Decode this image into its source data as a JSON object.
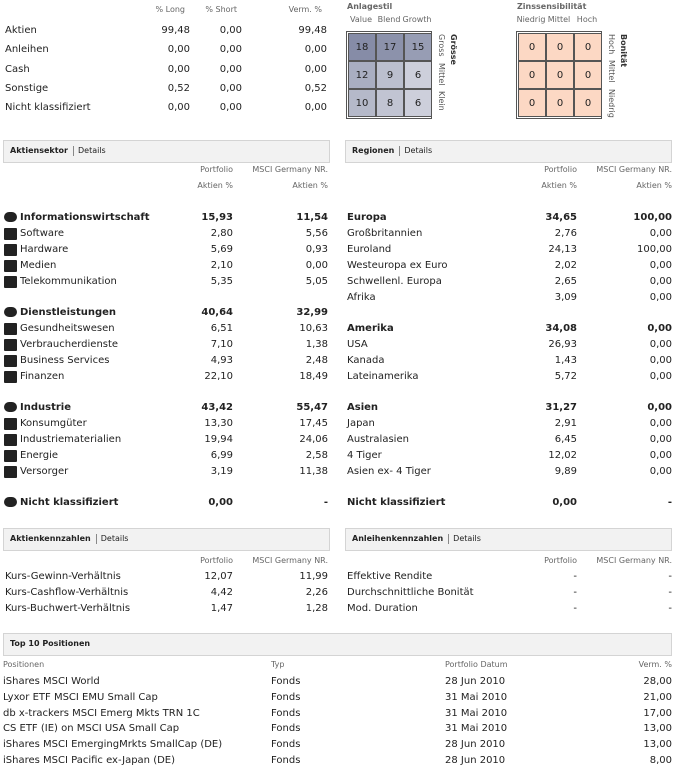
{
  "allocation": {
    "headers": [
      "% Long",
      "% Short",
      "Verm. %"
    ],
    "rows": [
      [
        "Aktien",
        "99,48",
        "0,00",
        "99,48"
      ],
      [
        "Anleihen",
        "0,00",
        "0,00",
        "0,00"
      ],
      [
        "Cash",
        "0,00",
        "0,00",
        "0,00"
      ],
      [
        "Sonstige",
        "0,52",
        "0,00",
        "0,52"
      ],
      [
        "Nicht klassifiziert",
        "0,00",
        "0,00",
        "0,00"
      ]
    ]
  },
  "style_box": {
    "title": "Anlagestil",
    "column_labels": [
      "Value",
      "Blend",
      "Growth"
    ],
    "side_title": "Grösse",
    "side_labels": [
      "Gross",
      "Mittel",
      "Klein"
    ],
    "cells": [
      [
        "18",
        "17",
        "15"
      ],
      [
        "12",
        "9",
        "6"
      ],
      [
        "10",
        "8",
        "6"
      ]
    ]
  },
  "rate_box": {
    "title": "Zinssensibilität",
    "column_labels": [
      "Niedrig",
      "Mittel",
      "Hoch"
    ],
    "side_title": "Bonität",
    "side_labels": [
      "Hoch",
      "Mittel",
      "Niedrig"
    ],
    "cells": [
      [
        "0",
        "0",
        "0"
      ],
      [
        "0",
        "0",
        "0"
      ],
      [
        "0",
        "0",
        "0"
      ]
    ]
  },
  "sectors": {
    "title": "Aktiensektor",
    "link": "Details",
    "headers": [
      [
        "Portfolio",
        "Aktien %"
      ],
      [
        "MSCI Germany NR.",
        "Aktien %"
      ]
    ],
    "groups": [
      {
        "name": "Informationswirtschaft",
        "values": [
          "15,93",
          "11,54"
        ],
        "items": [
          [
            "Software",
            "2,80",
            "5,56"
          ],
          [
            "Hardware",
            "5,69",
            "0,93"
          ],
          [
            "Medien",
            "2,10",
            "0,00"
          ],
          [
            "Telekommunikation",
            "5,35",
            "5,05"
          ]
        ]
      },
      {
        "name": "Dienstleistungen",
        "values": [
          "40,64",
          "32,99"
        ],
        "items": [
          [
            "Gesundheitswesen",
            "6,51",
            "10,63"
          ],
          [
            "Verbraucherdienste",
            "7,10",
            "1,38"
          ],
          [
            "Business Services",
            "4,93",
            "2,48"
          ],
          [
            "Finanzen",
            "22,10",
            "18,49"
          ]
        ]
      },
      {
        "name": "Industrie",
        "values": [
          "43,42",
          "55,47"
        ],
        "items": [
          [
            "Konsumgüter",
            "13,30",
            "17,45"
          ],
          [
            "Industriematerialien",
            "19,94",
            "24,06"
          ],
          [
            "Energie",
            "6,99",
            "2,58"
          ],
          [
            "Versorger",
            "3,19",
            "11,38"
          ]
        ]
      },
      {
        "name": "Nicht klassifiziert",
        "values": [
          "0,00",
          "-"
        ],
        "items": []
      }
    ]
  },
  "regions": {
    "title": "Regionen",
    "link": "Details",
    "headers": [
      [
        "Portfolio",
        "Aktien %"
      ],
      [
        "MSCI Germany NR.",
        "Aktien %"
      ]
    ],
    "groups": [
      {
        "name": "Europa",
        "values": [
          "34,65",
          "100,00"
        ],
        "items": [
          [
            "Großbritannien",
            "2,76",
            "0,00"
          ],
          [
            "Euroland",
            "24,13",
            "100,00"
          ],
          [
            "Westeuropa ex Euro",
            "2,02",
            "0,00"
          ],
          [
            "Schwellenl. Europa",
            "2,65",
            "0,00"
          ],
          [
            "Afrika",
            "3,09",
            "0,00"
          ]
        ]
      },
      {
        "name": "Amerika",
        "values": [
          "34,08",
          "0,00"
        ],
        "items": [
          [
            "USA",
            "26,93",
            "0,00"
          ],
          [
            "Kanada",
            "1,43",
            "0,00"
          ],
          [
            "Lateinamerika",
            "5,72",
            "0,00"
          ]
        ]
      },
      {
        "name": "Asien",
        "values": [
          "31,27",
          "0,00"
        ],
        "items": [
          [
            "Japan",
            "2,91",
            "0,00"
          ],
          [
            "Australasien",
            "6,45",
            "0,00"
          ],
          [
            "4 Tiger",
            "12,02",
            "0,00"
          ],
          [
            "Asien ex- 4 Tiger",
            "9,89",
            "0,00"
          ]
        ]
      },
      {
        "name": "Nicht klassifiziert",
        "values": [
          "0,00",
          "-"
        ],
        "items": []
      }
    ]
  },
  "equity_ratios": {
    "title": "Aktienkennzahlen",
    "link": "Details",
    "headers": [
      "Portfolio",
      "MSCI Germany NR."
    ],
    "rows": [
      [
        "Kurs-Gewinn-Verhältnis",
        "12,07",
        "11,99"
      ],
      [
        "Kurs-Cashflow-Verhältnis",
        "4,42",
        "2,26"
      ],
      [
        "Kurs-Buchwert-Verhältnis",
        "1,47",
        "1,28"
      ]
    ]
  },
  "bond_ratios": {
    "title": "Anleihenkennzahlen",
    "link": "Details",
    "headers": [
      "Portfolio",
      "MSCI Germany NR."
    ],
    "rows": [
      [
        "Effektive Rendite",
        "-",
        "-"
      ],
      [
        "Durchschnittliche Bonität",
        "-",
        "-"
      ],
      [
        "Mod. Duration",
        "-",
        "-"
      ]
    ]
  },
  "top10": {
    "title": "Top 10 Positionen",
    "headers": [
      "Positionen",
      "Typ",
      "Portfolio Datum",
      "Verm. %"
    ],
    "rows": [
      [
        "iShares MSCI World",
        "Fonds",
        "28 Jun 2010",
        "28,00"
      ],
      [
        "Lyxor ETF MSCI EMU Small Cap",
        "Fonds",
        "31 Mai 2010",
        "21,00"
      ],
      [
        "db x-trackers MSCI Emerg Mkts TRN 1C",
        "Fonds",
        "31 Mai 2010",
        "17,00"
      ],
      [
        "CS ETF (IE) on MSCI USA Small Cap",
        "Fonds",
        "31 Mai 2010",
        "13,00"
      ],
      [
        "iShares MSCI EmergingMrkts SmallCap (DE)",
        "Fonds",
        "28 Jun 2010",
        "13,00"
      ],
      [
        "iShares MSCI Pacific ex-Japan (DE)",
        "Fonds",
        "28 Jun 2010",
        "8,00"
      ]
    ]
  }
}
